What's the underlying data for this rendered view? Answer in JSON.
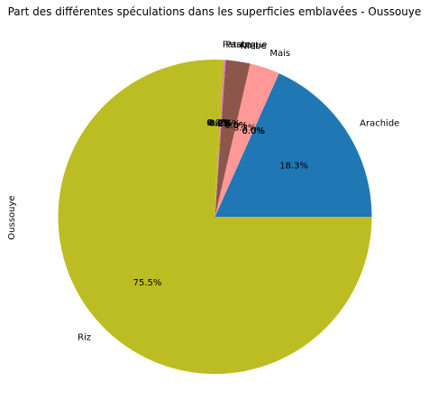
{
  "chart_data": {
    "type": "pie",
    "title": "Part des différentes spéculations dans les superficies emblavées - Oussouye",
    "ylabel": "Oussouye",
    "slices": [
      {
        "label": "Arachide",
        "percent": 18.3,
        "pct_text": "18.3%",
        "color": "#1f77b4"
      },
      {
        "label": "",
        "percent": 0.0,
        "pct_text": "0.0%",
        "color": "#ff7f0e"
      },
      {
        "label": "",
        "percent": 0.0,
        "pct_text": "0.0%",
        "color": "#2ca02c"
      },
      {
        "label": "",
        "percent": 0.0,
        "pct_text": "0.0%",
        "color": "#d62728"
      },
      {
        "label": "Mais",
        "percent": 3.1,
        "pct_text": "3.1%",
        "color": "#ff9896"
      },
      {
        "label": "",
        "percent": 0.0,
        "pct_text": "0.0%",
        "color": "#9467bd"
      },
      {
        "label": "",
        "percent": 0.0,
        "pct_text": "0.0%",
        "color": "#17becf"
      },
      {
        "label": "Niebe",
        "percent": 2.5,
        "pct_text": "2.5%",
        "color": "#8c564b"
      },
      {
        "label": "Pasteque",
        "percent": 0.2,
        "pct_text": "0.2%",
        "color": "#e377c2"
      },
      {
        "label": "",
        "percent": 0.0,
        "pct_text": "0.0%",
        "color": "#7f7f7f"
      },
      {
        "label": "Patate",
        "percent": 0.4,
        "pct_text": "0.4%",
        "color": "#bcbd22"
      },
      {
        "label": "",
        "percent": 0.0,
        "pct_text": "0.0%",
        "color": "#aec7e8"
      },
      {
        "label": "Riz",
        "percent": 75.5,
        "pct_text": "75.5%",
        "color": "#bcbd22"
      }
    ]
  }
}
